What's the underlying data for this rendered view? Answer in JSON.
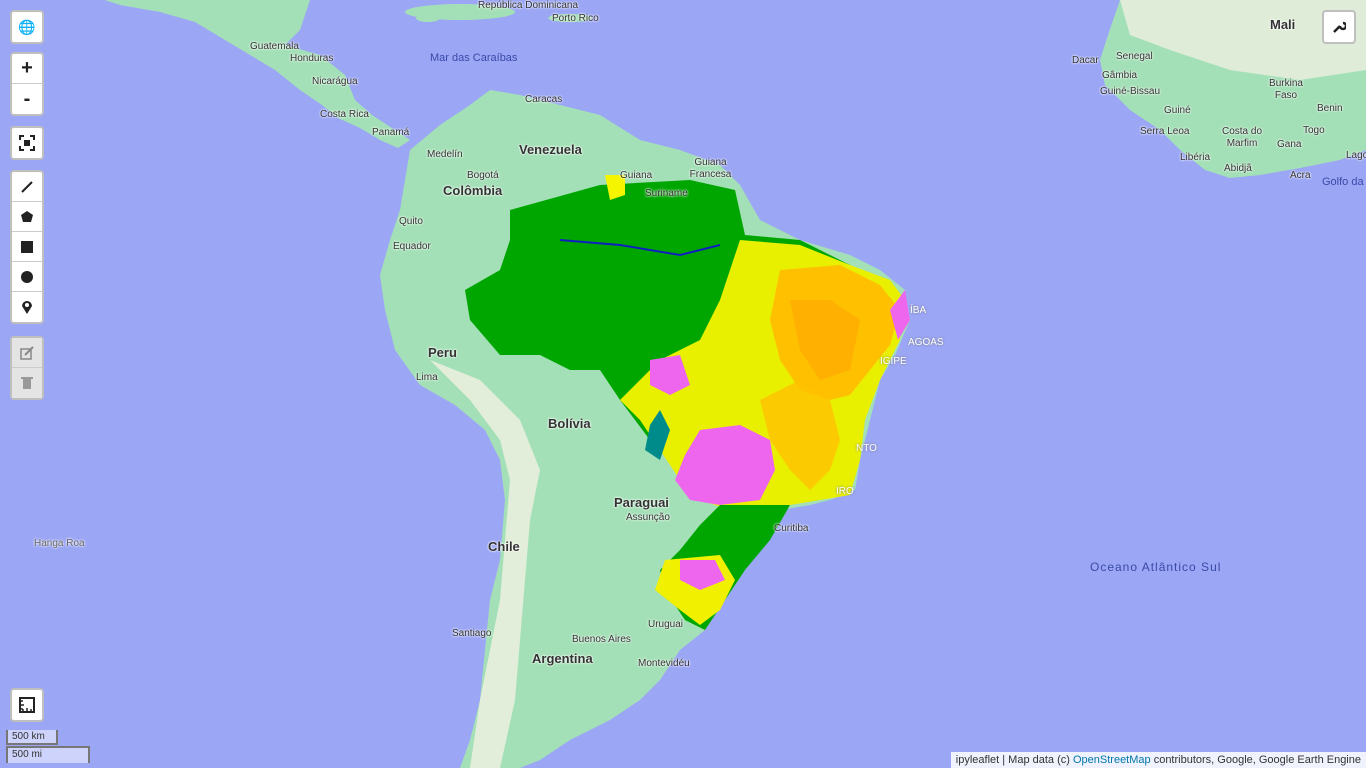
{
  "controls": {
    "zoom_in": "+",
    "zoom_out": "-"
  },
  "icons": {
    "layers": "globe-icon",
    "fullscreen": "fullscreen-icon",
    "line": "polyline-icon",
    "polygon": "polygon-icon",
    "rectangle": "rectangle-icon",
    "circle": "circle-icon",
    "marker": "marker-icon",
    "edit": "edit-icon",
    "delete": "trash-icon",
    "measure": "ruler-icon",
    "toolbar": "wrench-icon"
  },
  "colors": {
    "ocean": "#9ba6f5",
    "land": "#a4e0b7",
    "forest": "#00a600",
    "savanna": "#f5f500",
    "agriculture": "#ffc000",
    "pasture": "#ee66ee",
    "water": "#0000ff",
    "wetland": "#008b8b"
  },
  "labels": {
    "countries": [
      "Guatemala",
      "Honduras",
      "Nicarágua",
      "Costa Rica",
      "Panamá",
      "Venezuela",
      "Colômbia",
      "Equador",
      "Peru",
      "Bolívia",
      "Paraguai",
      "Chile",
      "Argentina",
      "Uruguai",
      "Guiana",
      "Suriname",
      "Guiana Francesa",
      "Mali",
      "Senegal",
      "Gâmbia",
      "Guiné-Bissau",
      "Guiné",
      "Serra Leoa",
      "Costa do Marfim",
      "Libéria",
      "Gana",
      "Togo",
      "Benin",
      "Burkina Faso"
    ],
    "cities": [
      "Caracas",
      "Medelín",
      "Bogotá",
      "Quito",
      "Lima",
      "Assunção",
      "Santiago",
      "Buenos Aires",
      "Montevidéu",
      "Curitiba",
      "Porto Rico",
      "Dacar",
      "Abidjã",
      "Acra",
      "Lagos",
      "Hanga Roa",
      "República Dominicana"
    ],
    "seas": [
      "Mar das Caraíbas",
      "Oceano Atlântico Sul",
      "Golfo da Guiné"
    ],
    "states_partial": [
      "ÍBA",
      "AGOAS",
      "IGIPE",
      "NTO",
      "IRO"
    ]
  },
  "scale": {
    "km": "500 km",
    "mi": "500 mi"
  },
  "attribution": {
    "prefix": "ipyleaflet | Map data (c) ",
    "link": "OpenStreetMap",
    "suffix": " contributors, Google, Google Earth Engine"
  }
}
